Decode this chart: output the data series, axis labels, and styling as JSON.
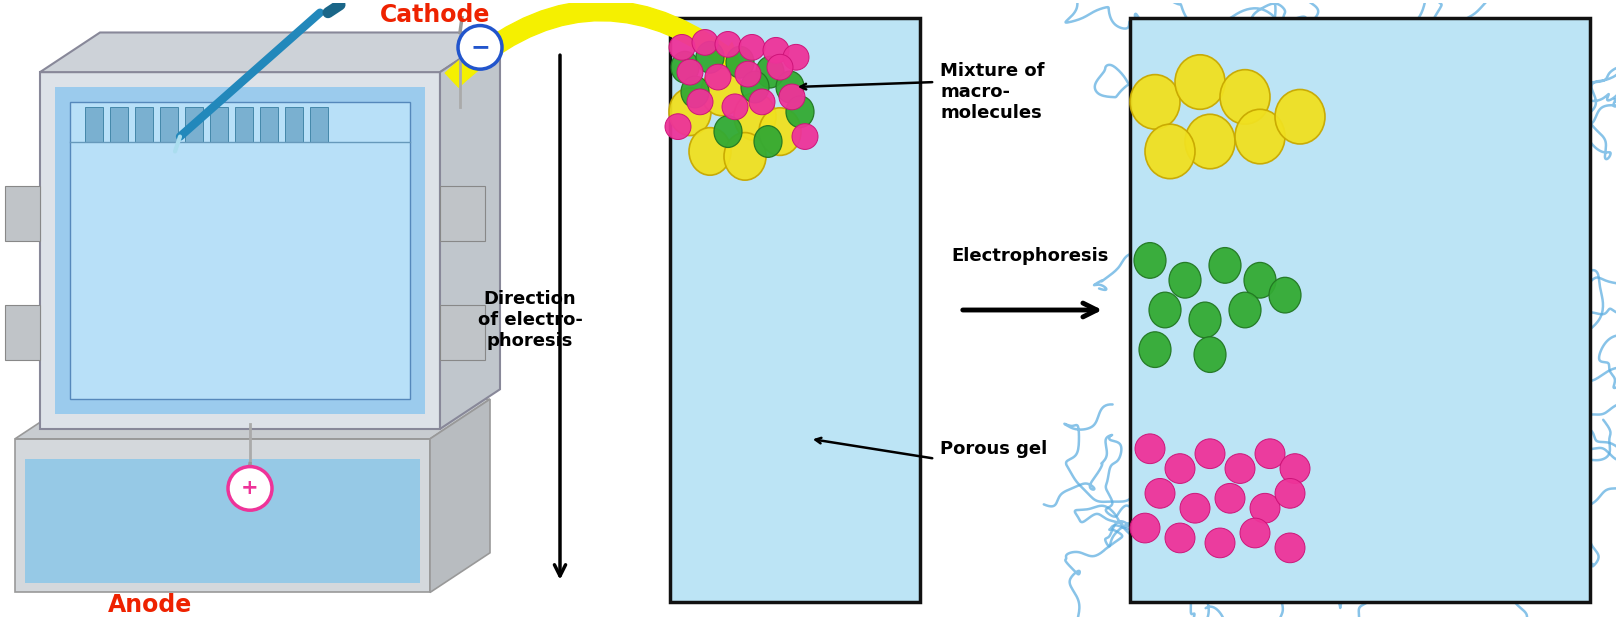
{
  "bg_color": "#ffffff",
  "gel_bg": "#bce4f5",
  "gel_border": "#111111",
  "gel_strand_color": "#5aace0",
  "yellow_color": "#f0e020",
  "yellow_edge": "#c8a800",
  "green_color": "#33aa33",
  "green_edge": "#227722",
  "pink_color": "#ee3399",
  "pink_edge": "#cc1177",
  "cathode_color": "#ee2200",
  "anode_color": "#ee2200",
  "neg_circle_color": "#2255cc",
  "pos_circle_color": "#ee3399",
  "pipette_color": "#2288bb",
  "yellow_arrow_color": "#f5f000",
  "label_cathode": "Cathode",
  "label_anode": "Anode",
  "label_direction": "Direction\nof electro-\nphoresis",
  "label_mixture": "Mixture of\nmacro-\nmolecules",
  "label_porous": "Porous gel",
  "label_electrophoresis": "Electrophoresis",
  "apparatus_color": "#e0e4e8",
  "apparatus_edge": "#888899",
  "liquid_color": "#a0d8f0",
  "gel_slab_color": "#c0e8f8"
}
